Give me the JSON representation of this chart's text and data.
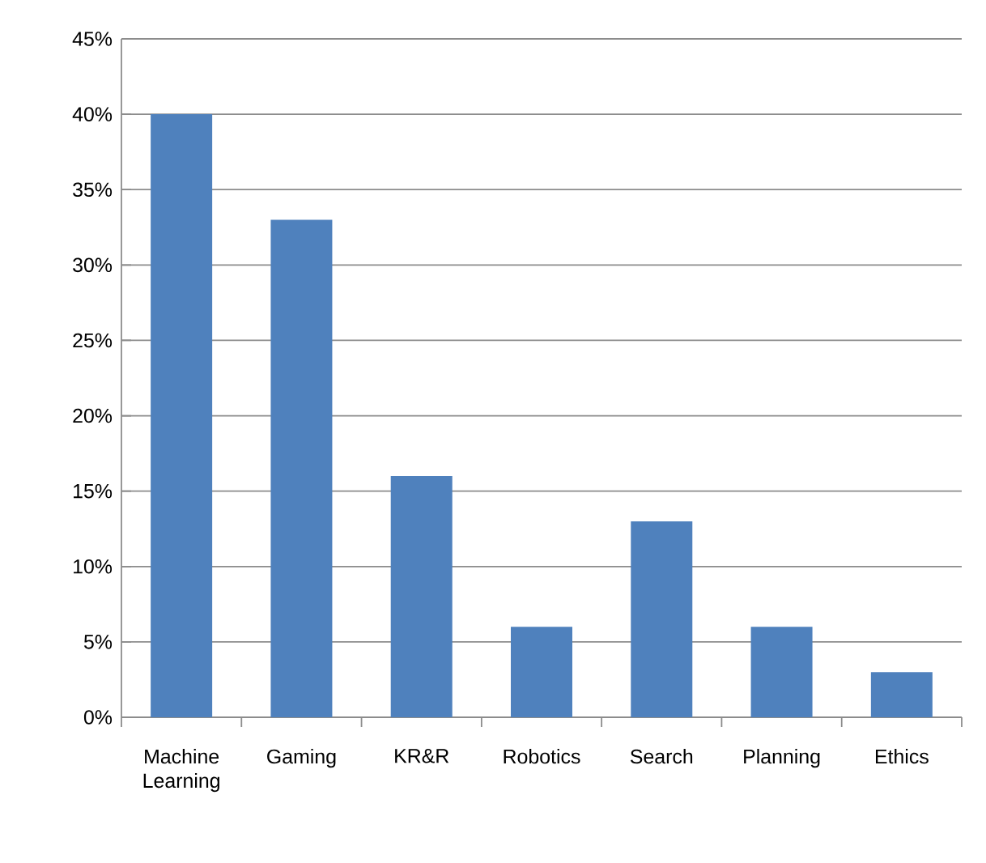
{
  "chart_data": {
    "type": "bar",
    "categories": [
      "Machine Learning",
      "Gaming",
      "KR&R",
      "Robotics",
      "Search",
      "Planning",
      "Ethics"
    ],
    "values": [
      40,
      33,
      16,
      6,
      13,
      6,
      3
    ],
    "color": "#4f81bd",
    "ylim": [
      0,
      45
    ],
    "yticks": [
      {
        "value": 0,
        "label": "0%"
      },
      {
        "value": 5,
        "label": "5%"
      },
      {
        "value": 10,
        "label": "10%"
      },
      {
        "value": 15,
        "label": "15%"
      },
      {
        "value": 20,
        "label": "20%"
      },
      {
        "value": 25,
        "label": "25%"
      },
      {
        "value": 30,
        "label": "30%"
      },
      {
        "value": 35,
        "label": "35%"
      },
      {
        "value": 40,
        "label": "40%"
      },
      {
        "value": 45,
        "label": "45%"
      }
    ],
    "grid": "y"
  }
}
